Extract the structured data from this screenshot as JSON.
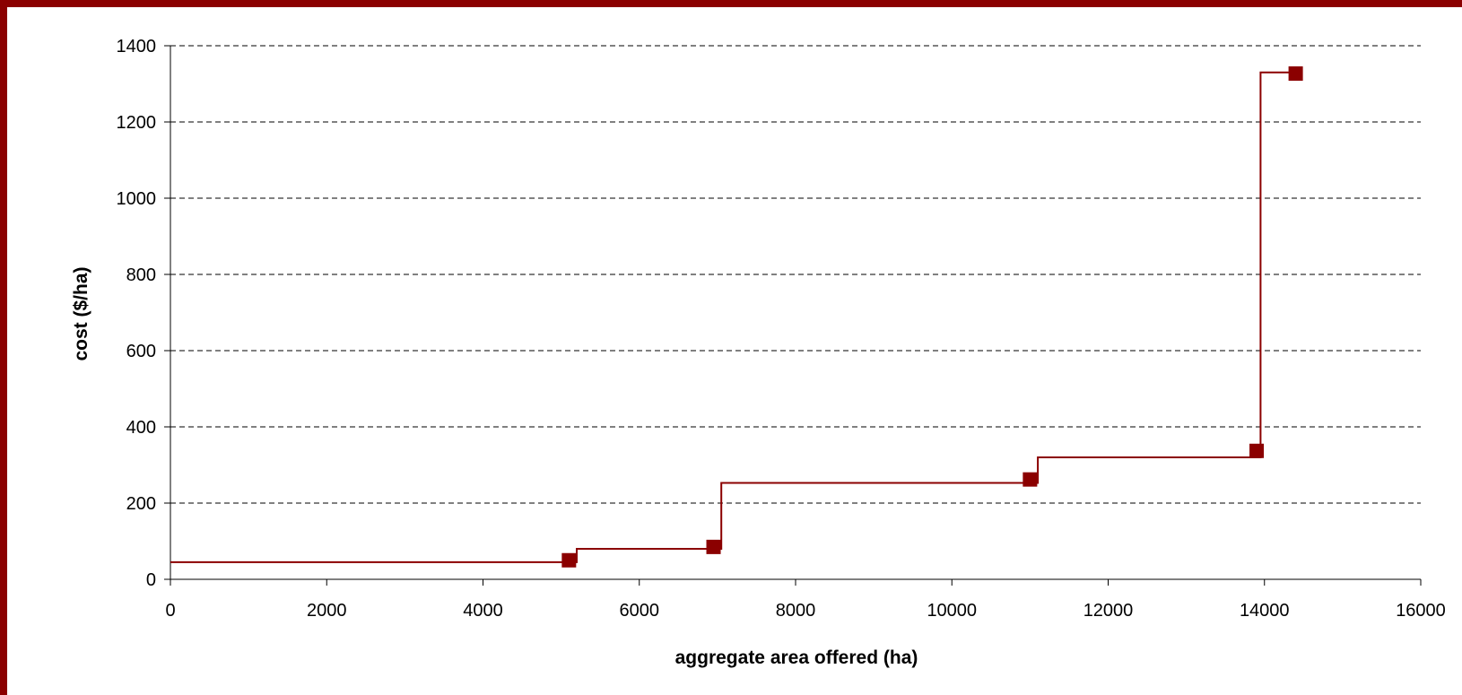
{
  "theme": {
    "frame_color": "#8b0000",
    "series_color": "#8b0000",
    "grid_color": "#000000",
    "axis_color": "#000000"
  },
  "chart_data": {
    "type": "line",
    "title": "",
    "xlabel": "aggregate area offered (ha)",
    "ylabel": "cost ($/ha)",
    "xlim": [
      0,
      16000
    ],
    "ylim": [
      0,
      1400
    ],
    "x_ticks": [
      0,
      2000,
      4000,
      6000,
      8000,
      10000,
      12000,
      14000,
      16000
    ],
    "y_ticks": [
      0,
      200,
      400,
      600,
      800,
      1000,
      1200,
      1400
    ],
    "grid": {
      "horizontal": true,
      "style": "dashed"
    },
    "legend": "none",
    "series": [
      {
        "style": "step",
        "x": [
          0,
          5200,
          5200,
          7050,
          7050,
          11100,
          11100,
          13950,
          13950,
          14400
        ],
        "y": [
          45,
          45,
          80,
          80,
          253,
          253,
          320,
          320,
          1330,
          1330
        ]
      },
      {
        "style": "markers",
        "marker": "square",
        "x": [
          5100,
          6950,
          11000,
          13900,
          14400
        ],
        "y": [
          50,
          85,
          262,
          337,
          1327
        ]
      }
    ]
  }
}
